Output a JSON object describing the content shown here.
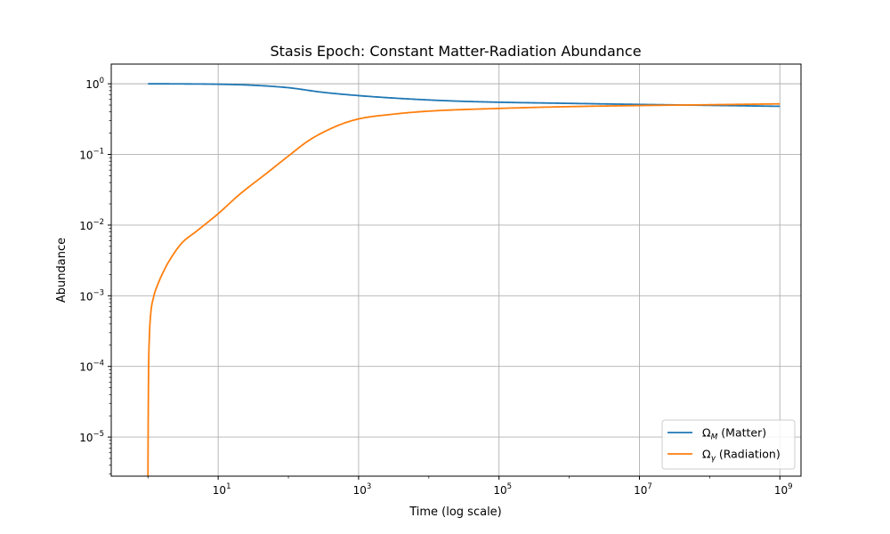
{
  "chart_data": {
    "type": "line",
    "title": "Stasis Epoch: Constant Matter-Radiation Abundance",
    "xlabel": "Time (log scale)",
    "ylabel": "Abundance",
    "xscale": "log",
    "yscale": "log",
    "xlim": [
      0.3,
      2000000000.0
    ],
    "ylim": [
      2.8e-06,
      1.9
    ],
    "grid": true,
    "legend_position": "lower-right",
    "x_ticks": [
      {
        "value": 10,
        "base": "10",
        "exp": "1"
      },
      {
        "value": 1000,
        "base": "10",
        "exp": "3"
      },
      {
        "value": 100000,
        "base": "10",
        "exp": "5"
      },
      {
        "value": 10000000,
        "base": "10",
        "exp": "7"
      },
      {
        "value": 1000000000,
        "base": "10",
        "exp": "9"
      }
    ],
    "y_ticks": [
      {
        "value": 1,
        "base": "10",
        "exp": "0"
      },
      {
        "value": 0.1,
        "base": "10",
        "exp": "−1"
      },
      {
        "value": 0.01,
        "base": "10",
        "exp": "−2"
      },
      {
        "value": 0.001,
        "base": "10",
        "exp": "−3"
      },
      {
        "value": 0.0001,
        "base": "10",
        "exp": "−4"
      },
      {
        "value": 1e-05,
        "base": "10",
        "exp": "−5"
      }
    ],
    "series": [
      {
        "name": "Ω_M (Matter)",
        "legend_symbol": "Ω",
        "legend_subscript": "M",
        "legend_rest": " (Matter)",
        "color": "#1f77b4",
        "x": [
          1,
          3,
          10,
          30,
          100,
          300,
          1000,
          3000,
          10000,
          30000,
          100000,
          1000000,
          10000000,
          100000000,
          1000000000
        ],
        "y": [
          0.999,
          0.996,
          0.985,
          0.955,
          0.88,
          0.76,
          0.68,
          0.63,
          0.59,
          0.565,
          0.548,
          0.528,
          0.51,
          0.495,
          0.48
        ]
      },
      {
        "name": "Ω_γ (Radiation)",
        "legend_symbol": "Ω",
        "legend_subscript": "γ",
        "legend_rest": " (Radiation)",
        "color": "#ff7f0e",
        "x": [
          1,
          1.005,
          1.02,
          1.05,
          1.1,
          1.2,
          1.4,
          1.7,
          2,
          3,
          5,
          10,
          20,
          50,
          100,
          200,
          500,
          1000,
          3000,
          10000,
          100000,
          1000000,
          10000000,
          100000000,
          1000000000
        ],
        "y": [
          2.8e-06,
          1e-05,
          8e-05,
          0.00028,
          0.00058,
          0.00095,
          0.0015,
          0.0023,
          0.0031,
          0.0055,
          0.0083,
          0.0145,
          0.027,
          0.055,
          0.095,
          0.16,
          0.255,
          0.318,
          0.37,
          0.41,
          0.448,
          0.475,
          0.492,
          0.505,
          0.52
        ]
      }
    ]
  }
}
